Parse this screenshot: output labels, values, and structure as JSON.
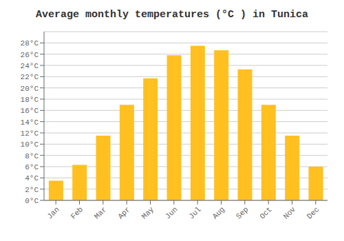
{
  "chart_data": {
    "type": "bar",
    "title": "Average monthly temperatures (°C ) in Tunica",
    "categories": [
      "Jan",
      "Feb",
      "Mar",
      "Apr",
      "May",
      "Jun",
      "Jul",
      "Aug",
      "Sep",
      "Oct",
      "Nov",
      "Dec"
    ],
    "values": [
      3.5,
      6.3,
      11.5,
      17.0,
      21.7,
      25.8,
      27.5,
      26.7,
      23.3,
      17.0,
      11.5,
      6.0
    ],
    "color": "#FFC020",
    "ylim": [
      0,
      30
    ],
    "yticks": [
      {
        "value": 0,
        "label": "0°C"
      },
      {
        "value": 2,
        "label": "2°C"
      },
      {
        "value": 4,
        "label": "4°C"
      },
      {
        "value": 6,
        "label": "6°C"
      },
      {
        "value": 8,
        "label": "8°C"
      },
      {
        "value": 10,
        "label": "10°C"
      },
      {
        "value": 12,
        "label": "12°C"
      },
      {
        "value": 14,
        "label": "14°C"
      },
      {
        "value": 16,
        "label": "16°C"
      },
      {
        "value": 18,
        "label": "18°C"
      },
      {
        "value": 20,
        "label": "20°C"
      },
      {
        "value": 22,
        "label": "22°C"
      },
      {
        "value": 24,
        "label": "24°C"
      },
      {
        "value": 26,
        "label": "26°C"
      },
      {
        "value": 28,
        "label": "28°C"
      }
    ],
    "grid": true
  }
}
